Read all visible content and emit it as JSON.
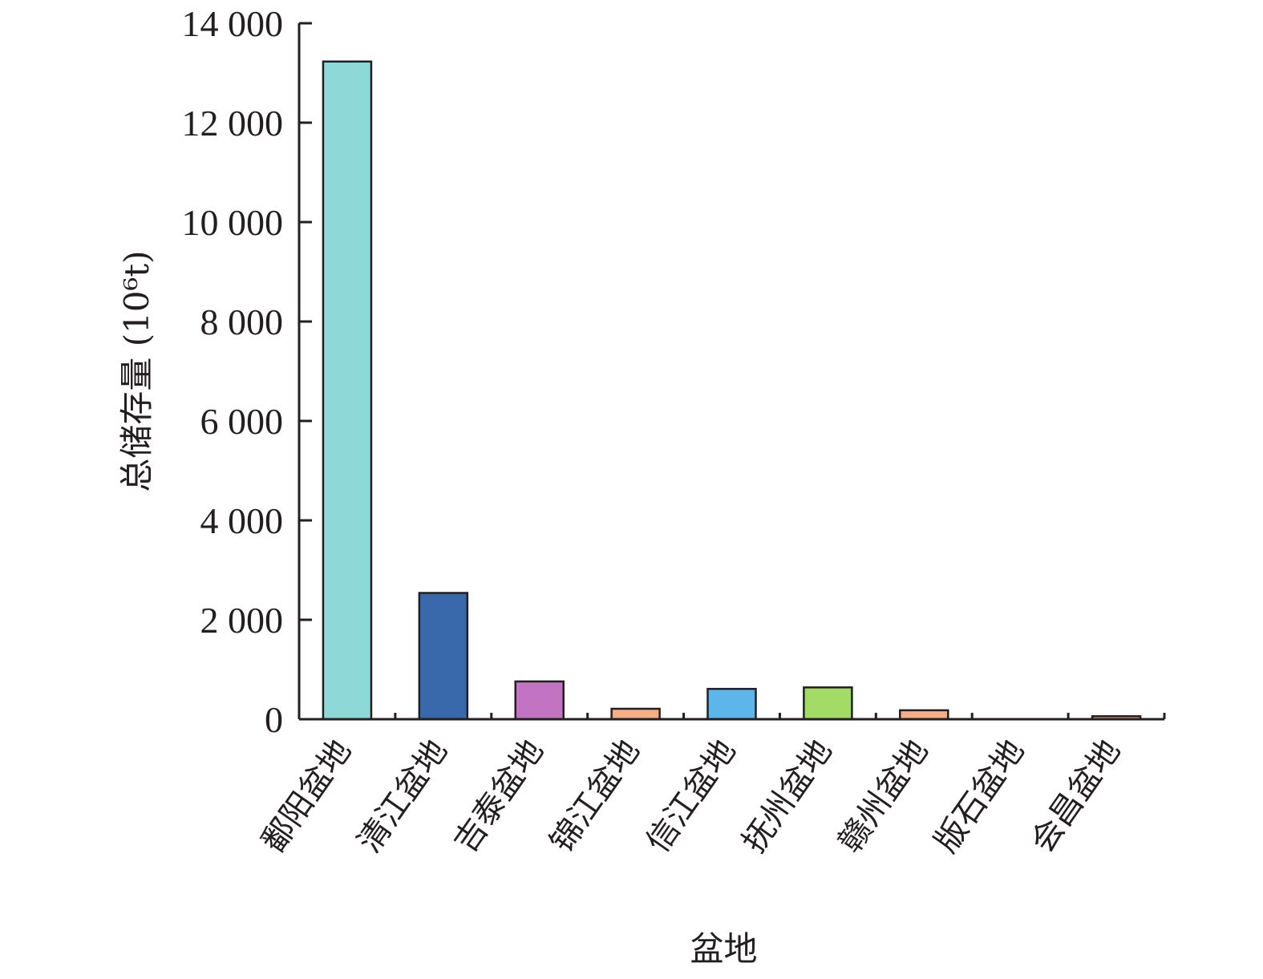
{
  "chart_data": {
    "type": "bar",
    "xlabel": "盆地",
    "ylabel": "总储存量 (10⁶t)",
    "ylim": [
      0,
      14000
    ],
    "yticks": [
      0,
      2000,
      4000,
      6000,
      8000,
      10000,
      12000,
      14000
    ],
    "ytick_labels": [
      "0",
      "2 000",
      "4 000",
      "6 000",
      "8 000",
      "10 000",
      "12 000",
      "14 000"
    ],
    "categories": [
      "鄱阳盆地",
      "清江盆地",
      "吉泰盆地",
      "锦江盆地",
      "信江盆地",
      "抚州盆地",
      "赣州盆地",
      "版石盆地",
      "会昌盆地"
    ],
    "values": [
      13230,
      2540,
      760,
      210,
      610,
      640,
      180,
      0,
      60
    ],
    "colors": [
      "#8fd8d8",
      "#3a69ab",
      "#c273c2",
      "#f5ae86",
      "#5db6ea",
      "#a3db67",
      "#f5ae86",
      "#f5ae86",
      "#f5ae86"
    ],
    "grid": false,
    "legend": "none"
  }
}
